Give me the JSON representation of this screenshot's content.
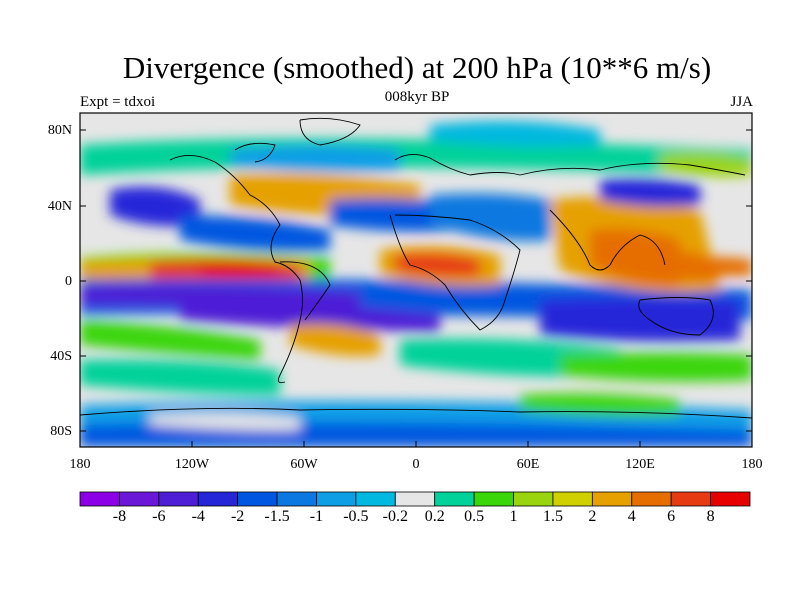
{
  "header": {
    "title": "Divergence (smoothed) at 200 hPa (10**6 m/s)",
    "subtitle": "008kyr BP",
    "left_label": "Expt = tdxoi",
    "right_label": "JJA"
  },
  "axes": {
    "lat_ticks": [
      "80N",
      "40N",
      "0",
      "40S",
      "80S"
    ],
    "lon_ticks": [
      "180",
      "120W",
      "60W",
      "0",
      "60E",
      "120E",
      "180"
    ]
  },
  "colorbar": {
    "colors": [
      "#8c00e6",
      "#6a17d8",
      "#4d1ed6",
      "#2626d9",
      "#0056e0",
      "#0a78e0",
      "#0e9ee6",
      "#00b8e0",
      "#e6e6e6",
      "#00d29a",
      "#3ad60a",
      "#9ad40e",
      "#d0d000",
      "#e6a000",
      "#e66e00",
      "#e63a12",
      "#e60000"
    ],
    "labels": [
      "-8",
      "-6",
      "-4",
      "-2",
      "-1.5",
      "-1",
      "-0.5",
      "-0.2",
      "0.2",
      "0.5",
      "1",
      "1.5",
      "2",
      "4",
      "6",
      "8"
    ]
  }
}
